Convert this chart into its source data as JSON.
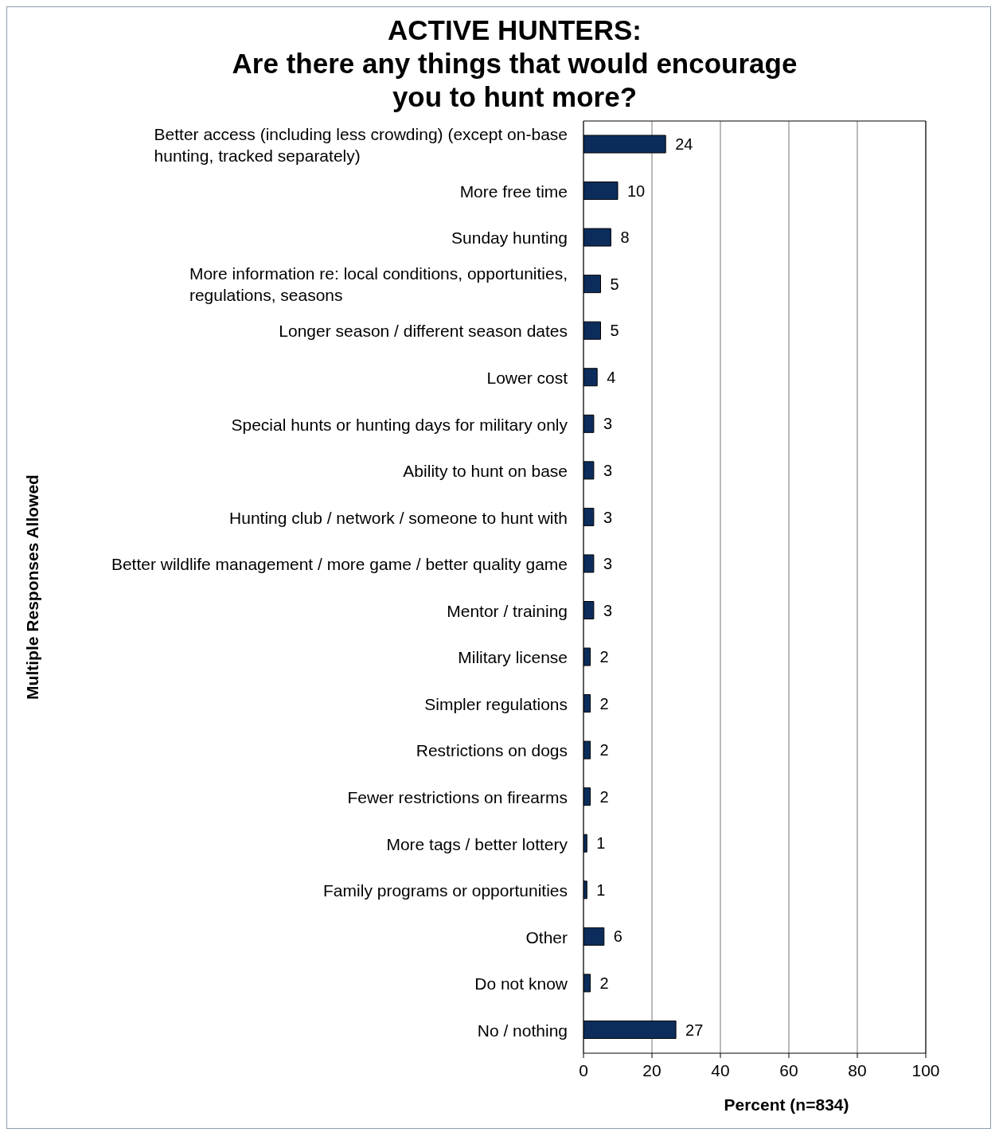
{
  "chart_data": {
    "type": "bar",
    "orientation": "horizontal",
    "title": "ACTIVE HUNTERS:\nAre there any things that would encourage\nyou to hunt more?",
    "ylabel": "Multiple Responses Allowed",
    "xlabel": "Percent (n=834)",
    "categories": [
      "Better access (including less crowding) (except on-base hunting, tracked separately)",
      "More free time",
      "Sunday hunting",
      "More information re: local conditions, opportunities, regulations, seasons",
      "Longer season / different season dates",
      "Lower cost",
      "Special hunts or hunting days for military only",
      "Ability to hunt on base",
      "Hunting club / network / someone to hunt with",
      "Better wildlife management / more game / better quality game",
      "Mentor / training",
      "Military license",
      "Simpler regulations",
      "Restrictions on dogs",
      "Fewer restrictions on firearms",
      "More tags / better lottery",
      "Family programs or opportunities",
      "Other",
      "Do not know",
      "No / nothing"
    ],
    "values": [
      24,
      10,
      8,
      5,
      5,
      4,
      3,
      3,
      3,
      3,
      3,
      2,
      2,
      2,
      2,
      1,
      1,
      6,
      2,
      27
    ],
    "color": "#0c2d5c",
    "xlim": [
      0,
      100
    ],
    "xticks": [
      0,
      20,
      40,
      60,
      80,
      100
    ],
    "grid": "x",
    "data_labels": true
  }
}
